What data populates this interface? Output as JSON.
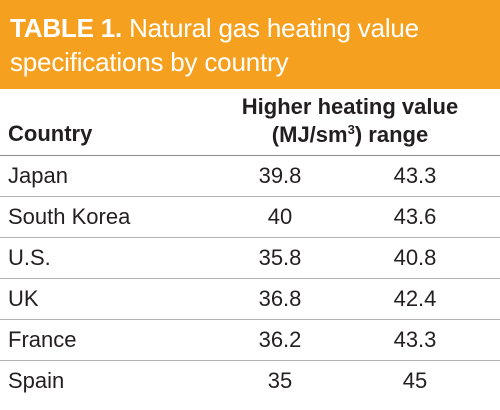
{
  "table": {
    "title_label": "TABLE 1.",
    "title_line1": "Natural gas heating value",
    "title_line2": "specifications by country",
    "header": {
      "country": "Country",
      "value_line1": "Higher heating value",
      "value_line2_before": "(MJ/sm",
      "value_line2_sup": "3",
      "value_line2_after": ") range"
    },
    "rows": [
      {
        "country": "Japan",
        "min": "39.8",
        "max": "43.3"
      },
      {
        "country": "South Korea",
        "min": "40",
        "max": "43.6"
      },
      {
        "country": "U.S.",
        "min": "35.8",
        "max": "40.8"
      },
      {
        "country": "UK",
        "min": "36.8",
        "max": "42.4"
      },
      {
        "country": "France",
        "min": "36.2",
        "max": "43.3"
      },
      {
        "country": "Spain",
        "min": "35",
        "max": "45"
      }
    ]
  }
}
